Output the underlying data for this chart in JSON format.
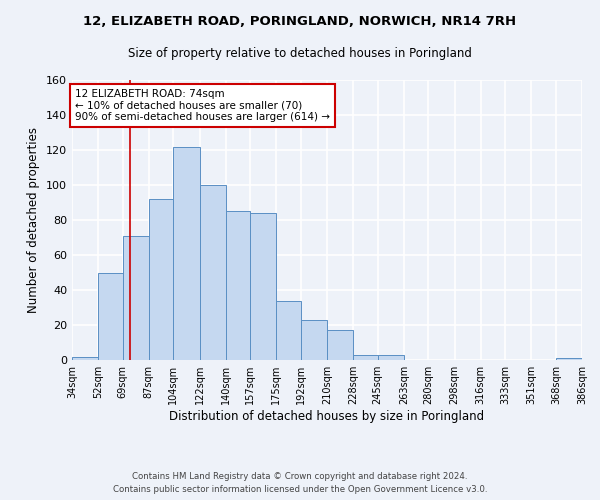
{
  "title": "12, ELIZABETH ROAD, PORINGLAND, NORWICH, NR14 7RH",
  "subtitle": "Size of property relative to detached houses in Poringland",
  "xlabel": "Distribution of detached houses by size in Poringland",
  "ylabel": "Number of detached properties",
  "bar_color": "#c5d8f0",
  "bar_edge_color": "#5a8fc4",
  "background_color": "#eef2f9",
  "grid_color": "#ffffff",
  "bin_edges": [
    34,
    52,
    69,
    87,
    104,
    122,
    140,
    157,
    175,
    192,
    210,
    228,
    245,
    263,
    280,
    298,
    316,
    333,
    351,
    368,
    386
  ],
  "bin_labels": [
    "34sqm",
    "52sqm",
    "69sqm",
    "87sqm",
    "104sqm",
    "122sqm",
    "140sqm",
    "157sqm",
    "175sqm",
    "192sqm",
    "210sqm",
    "228sqm",
    "245sqm",
    "263sqm",
    "280sqm",
    "298sqm",
    "316sqm",
    "333sqm",
    "351sqm",
    "368sqm",
    "386sqm"
  ],
  "counts": [
    2,
    50,
    71,
    92,
    122,
    100,
    85,
    84,
    34,
    23,
    17,
    3,
    3,
    0,
    0,
    0,
    0,
    0,
    0,
    1
  ],
  "ylim": [
    0,
    160
  ],
  "yticks": [
    0,
    20,
    40,
    60,
    80,
    100,
    120,
    140,
    160
  ],
  "property_line_x": 74,
  "property_line_color": "#cc0000",
  "annotation_text": "12 ELIZABETH ROAD: 74sqm\n← 10% of detached houses are smaller (70)\n90% of semi-detached houses are larger (614) →",
  "annotation_box_color": "#ffffff",
  "annotation_box_edge_color": "#cc0000",
  "footer_line1": "Contains HM Land Registry data © Crown copyright and database right 2024.",
  "footer_line2": "Contains public sector information licensed under the Open Government Licence v3.0."
}
